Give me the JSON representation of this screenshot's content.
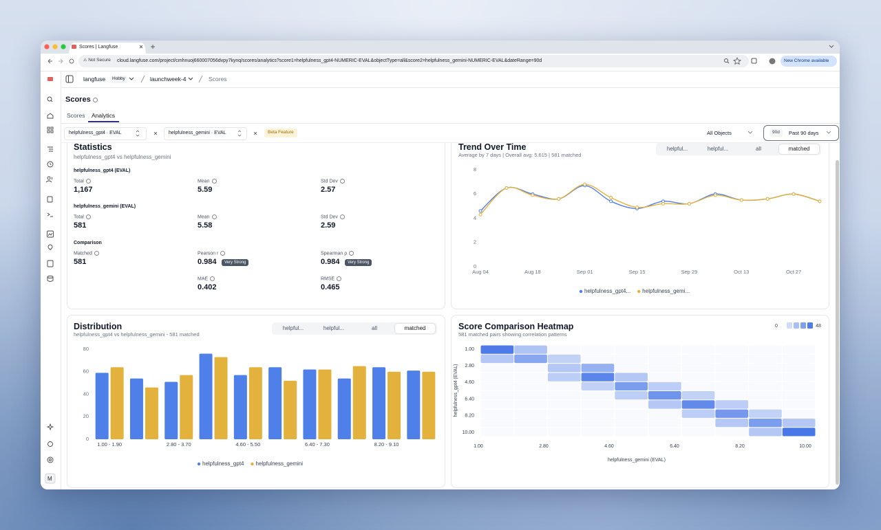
{
  "browser": {
    "tab_title": "Scores | Langfuse",
    "security": "Not Secure",
    "url": "cloud.langfuse.com/project/cmhnuoj660007056dvpy7kynq/scores/analytics?score1=helpfulness_gpt4-NUMERIC-EVAL&objectType=all&score2=helpfulness_gemini-NUMERIC-EVAL&dateRange=90d",
    "update": "New Chrome available"
  },
  "header": {
    "org": "langfuse",
    "plan": "Hobby",
    "project": "launchweek-4",
    "page": "Scores"
  },
  "sidebar": {
    "avatar": "M"
  },
  "page": {
    "title": "Scores",
    "tabs": [
      "Scores",
      "Analytics"
    ]
  },
  "filters": {
    "score1": "helpfulness_gpt4 · EVAL",
    "score2": "helpfulness_gemini · EVAL",
    "badge": "Beta Feature",
    "object_type": "All Objects",
    "range_short": "90d",
    "range": "Past 90 days"
  },
  "statistics": {
    "title": "Statistics",
    "subtitle": "helpfulness_gpt4 vs helpfulness_gemini",
    "sections": [
      {
        "heading": "helpfulness_gpt4 (EVAL)",
        "items": [
          {
            "label": "Total",
            "value": "1,167"
          },
          {
            "label": "Mean",
            "value": 5.59
          },
          {
            "label": "Std Dev",
            "value": 2.57
          }
        ]
      },
      {
        "heading": "helpfulness_gemini (EVAL)",
        "items": [
          {
            "label": "Total",
            "value": 581
          },
          {
            "label": "Mean",
            "value": 5.58
          },
          {
            "label": "Std Dev",
            "value": 2.59
          }
        ]
      },
      {
        "heading": "Comparison",
        "items": [
          {
            "label": "Matched",
            "value": 581
          },
          {
            "label": "Pearson r",
            "value": 0.984,
            "badge": "Very Strong"
          },
          {
            "label": "Spearman ρ",
            "value": 0.984,
            "badge": "Very Strong"
          },
          {
            "label": "MAE",
            "value": 0.402
          },
          {
            "label": "RMSE",
            "value": 0.465
          }
        ]
      }
    ]
  },
  "chart_data": [
    {
      "type": "line",
      "title": "Trend Over Time",
      "subtitle": "Average by 7 days | Overall avg: 5.615 | 581 matched",
      "toggles": [
        "helpful...",
        "helpful...",
        "all",
        "matched"
      ],
      "categories": [
        "Aug 04",
        null,
        "Aug 18",
        null,
        "Sep 01",
        null,
        "Sep 15",
        null,
        "Sep 29",
        null,
        "Oct 13",
        null,
        "Oct 27",
        null
      ],
      "series": [
        {
          "name": "helpfulness_gpt4...",
          "color": "#4f7fe8",
          "values": [
            4.6,
            6.5,
            6.0,
            5.6,
            6.7,
            5.4,
            4.8,
            5.4,
            5.2,
            6.0,
            5.5,
            5.6,
            6.0,
            5.4
          ]
        },
        {
          "name": "helpfulness_gemi...",
          "color": "#e3b23c",
          "values": [
            4.3,
            6.5,
            5.9,
            5.6,
            6.8,
            5.7,
            4.9,
            5.2,
            5.2,
            5.9,
            5.5,
            5.6,
            6.0,
            5.4
          ]
        }
      ],
      "ylim": [
        0,
        8
      ],
      "yticks": [
        0,
        2,
        4,
        6,
        8
      ],
      "grid": false
    },
    {
      "type": "bar",
      "title": "Distribution",
      "subtitle": "helpfulness_gpt4 vs helpfulness_gemini - 581 matched",
      "toggles": [
        "helpful...",
        "helpful...",
        "all",
        "matched"
      ],
      "categories": [
        "1.00 - 1.90",
        null,
        "2.80 - 3.70",
        null,
        "4.60 - 5.50",
        null,
        "6.40 - 7.30",
        null,
        "8.20 - 9.10",
        null
      ],
      "series": [
        {
          "name": "helpfulness_gpt4",
          "color": "#4f7fe8",
          "values": [
            59,
            54,
            51,
            76,
            57,
            64,
            62,
            54,
            64,
            61
          ]
        },
        {
          "name": "helpfulness_gemini",
          "color": "#e3b23c",
          "values": [
            64,
            46,
            57,
            73,
            64,
            52,
            62,
            65,
            60,
            60
          ]
        }
      ],
      "ylim": [
        0,
        80
      ],
      "yticks": [
        0,
        20,
        40,
        60,
        80
      ],
      "grid": false
    },
    {
      "type": "heatmap",
      "title": "Score Comparison Heatmap",
      "subtitle": "581 matched pairs showing correlation patterns",
      "x_label": "helpfulness_gemini (EVAL)",
      "y_label": "helpfulness_gpt4 (EVAL)",
      "color": "#3d6fe6",
      "color_range": [
        0,
        48
      ],
      "xlim": [
        1,
        10
      ],
      "xticks": [
        {
          "value": 1,
          "label": "1.00"
        },
        {
          "value": 2.8,
          "label": "2.80"
        },
        {
          "value": 4.6,
          "label": "4.60"
        },
        {
          "value": 6.4,
          "label": "6.40"
        },
        {
          "value": 8.2,
          "label": "8.20"
        },
        {
          "value": 10,
          "label": "10.00"
        }
      ],
      "ylim": [
        1,
        10
      ],
      "yticks": [
        {
          "value": 1,
          "label": "1.00"
        },
        {
          "value": 2.8,
          "label": "2.80"
        },
        {
          "value": 4.6,
          "label": "4.60"
        },
        {
          "value": 6.4,
          "label": "6.40"
        },
        {
          "value": 8.2,
          "label": "8.20"
        },
        {
          "value": 10,
          "label": "10.00"
        }
      ],
      "values": [
        [
          44,
          14,
          0,
          0,
          0,
          0,
          0,
          0,
          0,
          0
        ],
        [
          12,
          26,
          8,
          0,
          0,
          0,
          0,
          0,
          0,
          0
        ],
        [
          0,
          0,
          12,
          22,
          0,
          0,
          0,
          0,
          0,
          0
        ],
        [
          0,
          0,
          10,
          40,
          12,
          0,
          0,
          0,
          0,
          0
        ],
        [
          0,
          0,
          0,
          8,
          30,
          10,
          0,
          0,
          0,
          0
        ],
        [
          0,
          0,
          0,
          0,
          10,
          34,
          8,
          0,
          0,
          0
        ],
        [
          0,
          0,
          0,
          0,
          0,
          12,
          38,
          10,
          0,
          0
        ],
        [
          0,
          0,
          0,
          0,
          0,
          0,
          10,
          32,
          8,
          0
        ],
        [
          0,
          0,
          0,
          0,
          0,
          0,
          0,
          12,
          30,
          12
        ],
        [
          0,
          0,
          0,
          0,
          0,
          0,
          0,
          0,
          12,
          46
        ]
      ]
    }
  ]
}
